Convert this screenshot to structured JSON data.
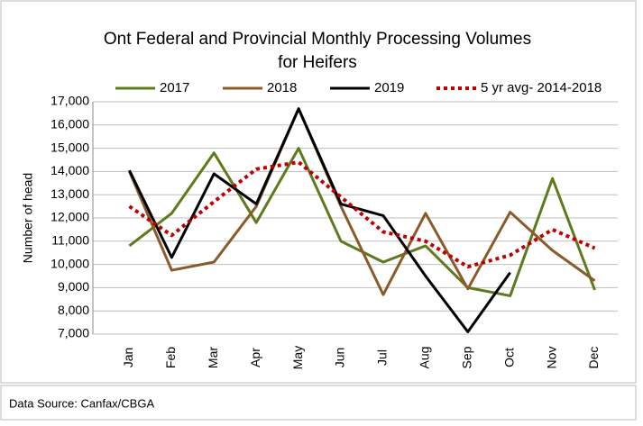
{
  "chart_data": {
    "type": "line",
    "title": [
      "Ont Federal and Provincial Monthly Processing Volumes",
      "for Heifers"
    ],
    "y_label": "Number of head",
    "source": "Data Source: Canfax/CBGA",
    "categories": [
      "Jan",
      "Feb",
      "Mar",
      "Apr",
      "May",
      "Jun",
      "Jul",
      "Aug",
      "Sep",
      "Oct",
      "Nov",
      "Dec"
    ],
    "series": [
      {
        "name": "2017",
        "color": "#5f7a1c",
        "line_style": "solid",
        "values": [
          10800,
          12200,
          14800,
          11800,
          15000,
          11000,
          10100,
          10800,
          9000,
          8650,
          13700,
          8900
        ]
      },
      {
        "name": "2018",
        "color": "#8b5a2b",
        "line_style": "solid",
        "values": [
          14000,
          9750,
          10100,
          12500,
          16700,
          12500,
          8700,
          12200,
          8950,
          12250,
          10600,
          9300
        ]
      },
      {
        "name": "2019",
        "color": "#000000",
        "line_style": "solid",
        "values": [
          14050,
          10300,
          13900,
          12600,
          16700,
          12600,
          12100,
          9500,
          7100,
          9650,
          null,
          null
        ]
      },
      {
        "name": "5 yr avg- 2014-2018",
        "color": "#c00000",
        "line_style": "dotted",
        "values": [
          12500,
          11250,
          12700,
          14100,
          14400,
          12900,
          11400,
          11000,
          9900,
          10400,
          11500,
          10700
        ]
      }
    ],
    "ylim": [
      7000,
      17000
    ],
    "yticks": [
      {
        "value": 7000,
        "label": "7,000"
      },
      {
        "value": 8000,
        "label": "8,000"
      },
      {
        "value": 9000,
        "label": "9,000"
      },
      {
        "value": 10000,
        "label": "10,000"
      },
      {
        "value": 11000,
        "label": "11,000"
      },
      {
        "value": 12000,
        "label": "12,000"
      },
      {
        "value": 13000,
        "label": "13,000"
      },
      {
        "value": 14000,
        "label": "14,000"
      },
      {
        "value": 15000,
        "label": "15,000"
      },
      {
        "value": 16000,
        "label": "16,000"
      },
      {
        "value": 17000,
        "label": "17,000"
      }
    ],
    "grid": true,
    "legend": "top"
  }
}
